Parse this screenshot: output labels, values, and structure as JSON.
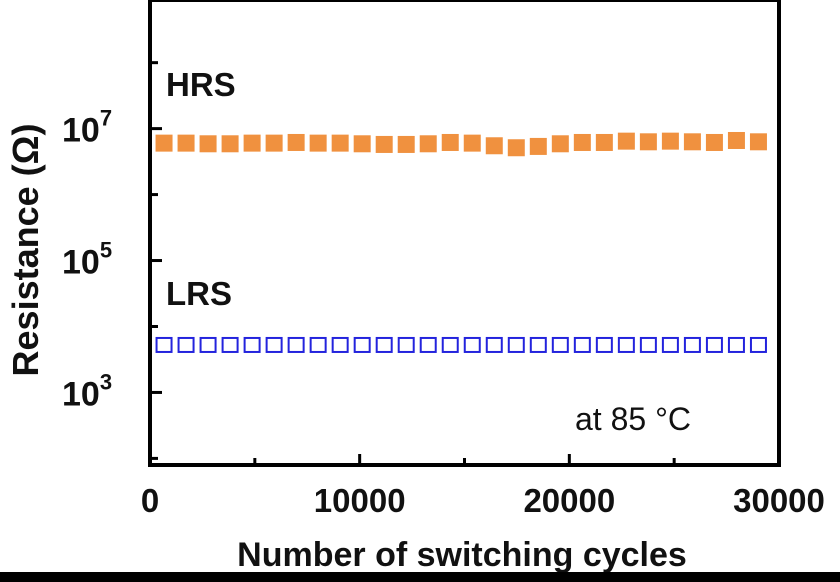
{
  "chart_data": {
    "type": "scatter",
    "xlabel": "Number of switching cycles",
    "ylabel": "Resistance (Ω)",
    "annotation": "at 85 °C",
    "xlim": [
      0,
      30000
    ],
    "ylim_log10": [
      1.9,
      8.95
    ],
    "y_scale": "log",
    "grid": false,
    "x_ticks": [
      {
        "value": 0,
        "label": "0"
      },
      {
        "value": 10000,
        "label": "10000"
      },
      {
        "value": 20000,
        "label": "20000"
      },
      {
        "value": 30000,
        "label": "30000"
      }
    ],
    "y_ticks": [
      {
        "exp": 3,
        "base": "10",
        "sup": "3"
      },
      {
        "exp": 5,
        "base": "10",
        "sup": "5"
      },
      {
        "exp": 7,
        "base": "10",
        "sup": "7"
      }
    ],
    "series": [
      {
        "name": "HRS",
        "color": "#f0913f",
        "marker": "filled-square",
        "x": [
          670,
          1720,
          2770,
          3820,
          4870,
          5920,
          6970,
          8020,
          9070,
          10120,
          11170,
          12220,
          13270,
          14320,
          15370,
          16420,
          17470,
          18520,
          19570,
          20620,
          21670,
          22720,
          23770,
          24820,
          25870,
          26920,
          27970,
          29020
        ],
        "log10_y": [
          6.78,
          6.78,
          6.77,
          6.77,
          6.78,
          6.78,
          6.79,
          6.78,
          6.78,
          6.77,
          6.76,
          6.76,
          6.77,
          6.79,
          6.78,
          6.74,
          6.71,
          6.73,
          6.77,
          6.79,
          6.79,
          6.81,
          6.8,
          6.81,
          6.8,
          6.79,
          6.82,
          6.8
        ]
      },
      {
        "name": "LRS",
        "color": "#2323dd",
        "marker": "open-square",
        "x": [
          670,
          1720,
          2770,
          3820,
          4870,
          5920,
          6970,
          8020,
          9070,
          10120,
          11170,
          12220,
          13270,
          14320,
          15370,
          16420,
          17470,
          18520,
          19570,
          20620,
          21670,
          22720,
          23770,
          24820,
          25870,
          26920,
          27970,
          29020
        ],
        "log10_y": [
          3.72,
          3.72,
          3.72,
          3.72,
          3.72,
          3.72,
          3.72,
          3.72,
          3.72,
          3.72,
          3.72,
          3.72,
          3.72,
          3.72,
          3.72,
          3.72,
          3.72,
          3.72,
          3.72,
          3.72,
          3.72,
          3.72,
          3.72,
          3.72,
          3.72,
          3.72,
          3.72,
          3.72
        ]
      }
    ]
  }
}
